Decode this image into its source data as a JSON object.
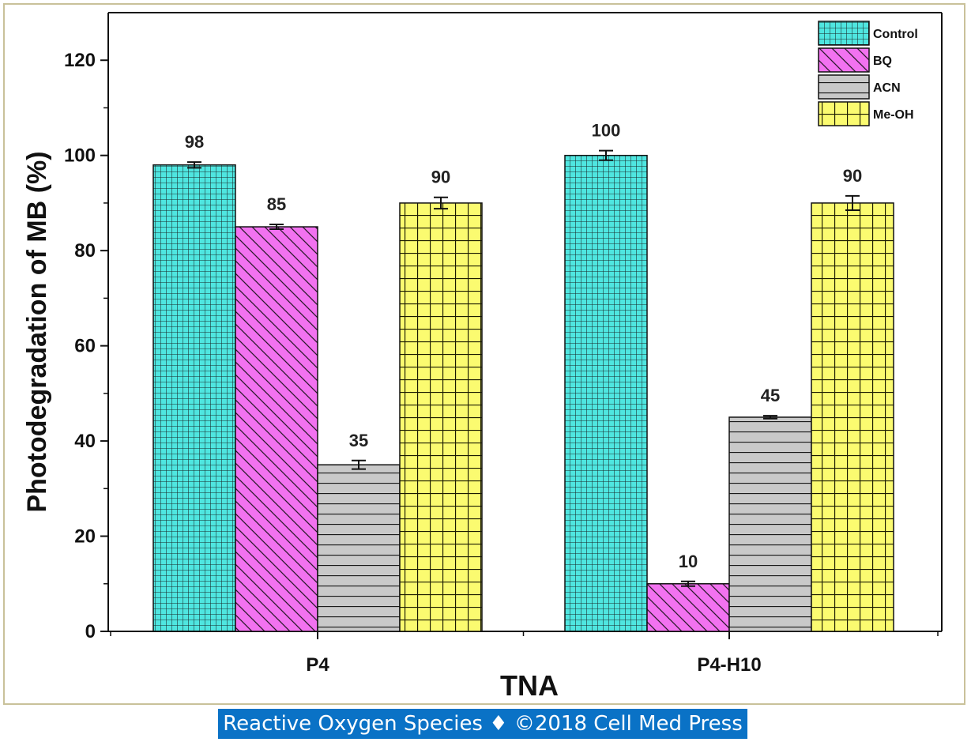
{
  "caption": "Reactive Oxygen Species ♦ ©2018 Cell Med Press",
  "chart_data": {
    "type": "bar",
    "xlabel": "TNA",
    "ylabel": "Photodegradation of MB (%)",
    "ylim": [
      0,
      130
    ],
    "yticks": [
      0,
      20,
      40,
      60,
      80,
      100,
      120
    ],
    "categories": [
      "P4",
      "P4-H10"
    ],
    "grid": false,
    "legend_position": "top-right",
    "series": [
      {
        "name": "Control",
        "values": [
          98,
          100
        ],
        "labels": [
          "98",
          "100"
        ],
        "errors": [
          0.6,
          1.0
        ],
        "color": "#4fe6e0",
        "pattern": "grid"
      },
      {
        "name": "BQ",
        "values": [
          85,
          10
        ],
        "labels": [
          "85",
          "10"
        ],
        "errors": [
          0.5,
          0.5
        ],
        "color": "#f272f0",
        "pattern": "diagonal"
      },
      {
        "name": "ACN",
        "values": [
          35,
          45
        ],
        "labels": [
          "35",
          "45"
        ],
        "errors": [
          0.9,
          0.3
        ],
        "color": "#c9c9c9",
        "pattern": "horizontal"
      },
      {
        "name": "Me-OH",
        "values": [
          90,
          90
        ],
        "labels": [
          "90",
          "90"
        ],
        "errors": [
          1.2,
          1.5
        ],
        "color": "#fbfb70",
        "pattern": "square"
      }
    ]
  }
}
